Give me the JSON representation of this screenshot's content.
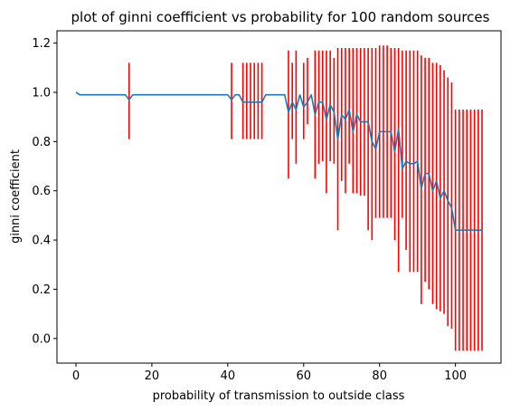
{
  "chart_data": {
    "type": "line",
    "title": "plot of ginni coefficient vs probability for 100 random sources",
    "xlabel": "probability of transmission to outside class",
    "ylabel": "ginni coefficient",
    "xlim": [
      -5,
      112
    ],
    "ylim": [
      -0.1,
      1.25
    ],
    "xticks": [
      0,
      20,
      40,
      60,
      80,
      100
    ],
    "yticks": [
      0.0,
      0.2,
      0.4,
      0.6,
      0.8,
      1.0,
      1.2
    ],
    "ytick_labels": [
      "0.0",
      "0.2",
      "0.4",
      "0.6",
      "0.8",
      "1.0",
      "1.2"
    ],
    "grid": false,
    "line_color": "#1f77b4",
    "errorbar_color": "#ff0000",
    "series": [
      {
        "x": [
          0,
          1,
          2,
          3,
          4,
          5,
          6,
          7,
          8,
          9,
          10,
          11,
          12,
          13,
          14,
          15,
          16,
          17,
          18,
          19,
          20,
          21,
          22,
          23,
          24,
          25,
          26,
          27,
          28,
          29,
          30,
          31,
          32,
          33,
          34,
          35,
          36,
          37,
          38,
          39,
          40,
          41,
          42,
          43,
          44,
          45,
          46,
          47,
          48,
          49,
          50,
          51,
          52,
          53,
          54,
          55,
          56,
          57,
          58,
          59,
          60,
          61,
          62,
          63,
          64,
          65,
          66,
          67,
          68,
          69,
          70,
          71,
          72,
          73,
          74,
          75,
          76,
          77,
          78,
          79,
          80,
          81,
          82,
          83,
          84,
          85,
          86,
          87,
          88,
          89,
          90,
          91,
          92,
          93,
          94,
          95,
          96,
          97,
          98,
          99,
          100,
          101,
          102,
          103,
          104,
          105,
          106,
          107
        ],
        "y": [
          1.0,
          0.99,
          0.99,
          0.99,
          0.99,
          0.99,
          0.99,
          0.99,
          0.99,
          0.99,
          0.99,
          0.99,
          0.99,
          0.99,
          0.97,
          0.99,
          0.99,
          0.99,
          0.99,
          0.99,
          0.99,
          0.99,
          0.99,
          0.99,
          0.99,
          0.99,
          0.99,
          0.99,
          0.99,
          0.99,
          0.99,
          0.99,
          0.99,
          0.99,
          0.99,
          0.99,
          0.99,
          0.99,
          0.99,
          0.99,
          0.99,
          0.97,
          0.99,
          0.99,
          0.96,
          0.96,
          0.96,
          0.96,
          0.96,
          0.96,
          0.99,
          0.99,
          0.99,
          0.99,
          0.99,
          0.99,
          0.92,
          0.96,
          0.93,
          0.99,
          0.94,
          0.96,
          0.99,
          0.91,
          0.96,
          0.96,
          0.89,
          0.95,
          0.92,
          0.81,
          0.91,
          0.89,
          0.93,
          0.84,
          0.91,
          0.88,
          0.88,
          0.88,
          0.8,
          0.77,
          0.84,
          0.84,
          0.84,
          0.84,
          0.76,
          0.85,
          0.69,
          0.72,
          0.71,
          0.71,
          0.72,
          0.61,
          0.67,
          0.67,
          0.6,
          0.64,
          0.57,
          0.6,
          0.56,
          0.53,
          0.44,
          0.44,
          0.44,
          0.44,
          0.44,
          0.44,
          0.44,
          0.44
        ],
        "yerr_low": [
          1.0,
          0.99,
          0.99,
          0.99,
          0.99,
          0.99,
          0.99,
          0.99,
          0.99,
          0.99,
          0.99,
          0.99,
          0.99,
          0.99,
          0.81,
          0.99,
          0.99,
          0.99,
          0.99,
          0.99,
          0.99,
          0.99,
          0.99,
          0.99,
          0.99,
          0.99,
          0.99,
          0.99,
          0.99,
          0.99,
          0.99,
          0.99,
          0.99,
          0.99,
          0.99,
          0.99,
          0.99,
          0.99,
          0.99,
          0.99,
          0.99,
          0.81,
          0.99,
          0.99,
          0.81,
          0.81,
          0.81,
          0.81,
          0.81,
          0.81,
          0.99,
          0.99,
          0.99,
          0.99,
          0.99,
          0.99,
          0.65,
          0.81,
          0.71,
          0.99,
          0.81,
          0.87,
          0.99,
          0.65,
          0.71,
          0.72,
          0.59,
          0.72,
          0.71,
          0.44,
          0.64,
          0.59,
          0.71,
          0.59,
          0.59,
          0.58,
          0.58,
          0.44,
          0.4,
          0.49,
          0.49,
          0.49,
          0.49,
          0.49,
          0.4,
          0.27,
          0.49,
          0.36,
          0.27,
          0.27,
          0.27,
          0.14,
          0.23,
          0.2,
          0.14,
          0.12,
          0.11,
          0.1,
          0.05,
          0.04,
          -0.05,
          -0.05,
          -0.05,
          -0.05,
          -0.05,
          -0.05,
          -0.05,
          -0.05
        ],
        "yerr_high": [
          1.0,
          0.99,
          0.99,
          0.99,
          0.99,
          0.99,
          0.99,
          0.99,
          0.99,
          0.99,
          0.99,
          0.99,
          0.99,
          0.99,
          1.12,
          0.99,
          0.99,
          0.99,
          0.99,
          0.99,
          0.99,
          0.99,
          0.99,
          0.99,
          0.99,
          0.99,
          0.99,
          0.99,
          0.99,
          0.99,
          0.99,
          0.99,
          0.99,
          0.99,
          0.99,
          0.99,
          0.99,
          0.99,
          0.99,
          0.99,
          0.99,
          1.12,
          0.99,
          0.99,
          1.12,
          1.12,
          1.12,
          1.12,
          1.12,
          1.12,
          0.99,
          0.99,
          0.99,
          0.99,
          0.99,
          0.99,
          1.17,
          1.12,
          1.17,
          0.99,
          1.12,
          1.14,
          0.99,
          1.17,
          1.17,
          1.17,
          1.17,
          1.17,
          1.14,
          1.18,
          1.18,
          1.18,
          1.18,
          1.18,
          1.18,
          1.18,
          1.18,
          1.18,
          1.18,
          1.18,
          1.19,
          1.19,
          1.19,
          1.18,
          1.18,
          1.18,
          1.17,
          1.17,
          1.17,
          1.17,
          1.17,
          1.15,
          1.14,
          1.14,
          1.12,
          1.12,
          1.11,
          1.09,
          1.06,
          1.04,
          0.93,
          0.93,
          0.93,
          0.93,
          0.93,
          0.93,
          0.93,
          0.93
        ]
      }
    ]
  }
}
